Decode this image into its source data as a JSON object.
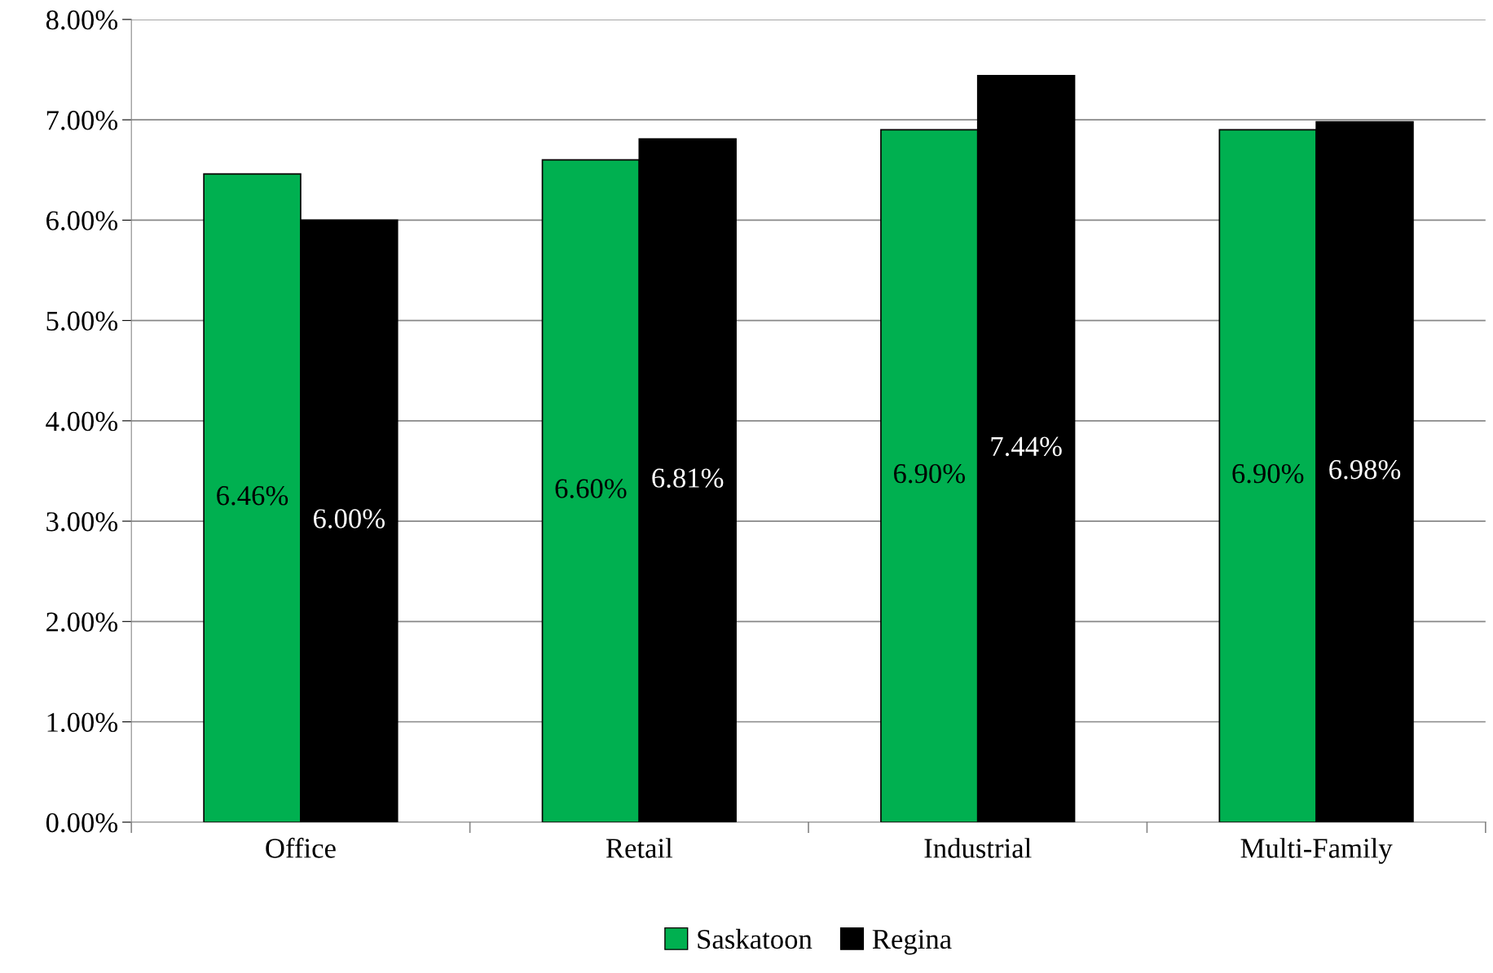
{
  "chart_data": {
    "type": "bar",
    "categories": [
      "Office",
      "Retail",
      "Industrial",
      "Multi-Family"
    ],
    "series": [
      {
        "name": "Saskatoon",
        "color": "#00b050",
        "values": [
          6.46,
          6.6,
          6.9,
          6.9
        ],
        "value_labels": [
          "6.46%",
          "6.60%",
          "6.90%",
          "6.90%"
        ]
      },
      {
        "name": "Regina",
        "color": "#000000",
        "values": [
          6.0,
          6.81,
          7.44,
          6.98
        ],
        "value_labels": [
          "6.00%",
          "6.81%",
          "7.44%",
          "6.98%"
        ]
      }
    ],
    "ylim": [
      0,
      8
    ],
    "yticks": [
      {
        "value": 0,
        "label": "0.00%"
      },
      {
        "value": 1,
        "label": "1.00%"
      },
      {
        "value": 2,
        "label": "2.00%"
      },
      {
        "value": 3,
        "label": "3.00%"
      },
      {
        "value": 4,
        "label": "4.00%"
      },
      {
        "value": 5,
        "label": "5.00%"
      },
      {
        "value": 6,
        "label": "6.00%"
      },
      {
        "value": 7,
        "label": "7.00%"
      },
      {
        "value": 8,
        "label": "8.00%"
      }
    ],
    "grid": "y",
    "legend": "bottom"
  }
}
